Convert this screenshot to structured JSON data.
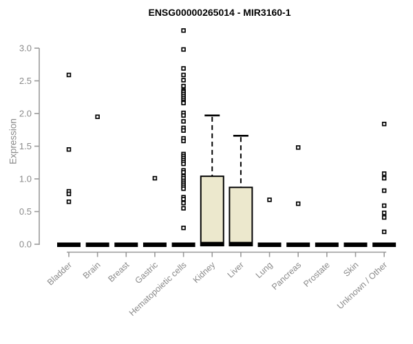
{
  "chart_data": {
    "type": "boxplot",
    "title": "ENSG00000265014 - MIR3160-1",
    "ylabel": "Expression",
    "xlabel": "",
    "ylim": [
      0,
      3.3
    ],
    "yticks": [
      0,
      0.5,
      1,
      1.5,
      2,
      2.5,
      3
    ],
    "grid": false,
    "legend": "none",
    "colors": {
      "box_fill": "#ece8cd",
      "box_stroke": "#000000",
      "point": "#000000",
      "axis": "#9a9a9a",
      "tick_label": "#8a8a8a",
      "title": "#000000"
    },
    "categories": [
      "Bladder",
      "Brain",
      "Breast",
      "Gastric",
      "Hematopoietic cells",
      "Kidney",
      "Liver",
      "Lung",
      "Pancreas",
      "Prostate",
      "Skin",
      "Unknown / Other"
    ],
    "series": [
      {
        "name": "Bladder",
        "box": {
          "q1": 0,
          "median": 0,
          "q3": 0.02,
          "upper_whisker": 0.02
        },
        "outliers": [
          2.59,
          1.45,
          0.81,
          0.77,
          0.65
        ]
      },
      {
        "name": "Brain",
        "box": {
          "q1": 0,
          "median": 0,
          "q3": 0.02,
          "upper_whisker": 0.02
        },
        "outliers": [
          1.95
        ]
      },
      {
        "name": "Breast",
        "box": {
          "q1": 0,
          "median": 0,
          "q3": 0.02,
          "upper_whisker": 0.02
        },
        "outliers": []
      },
      {
        "name": "Gastric",
        "box": {
          "q1": 0,
          "median": 0,
          "q3": 0.02,
          "upper_whisker": 0.02
        },
        "outliers": [
          1.01
        ]
      },
      {
        "name": "Hematopoietic cells",
        "box": {
          "q1": 0,
          "median": 0,
          "q3": 0.02,
          "upper_whisker": 0.02
        },
        "outliers": [
          3.27,
          2.98,
          2.69,
          2.59,
          2.51,
          2.42,
          2.35,
          2.33,
          2.3,
          2.27,
          2.24,
          2.21,
          2.18,
          2.16,
          2.01,
          1.97,
          1.88,
          1.78,
          1.74,
          1.62,
          1.58,
          1.38,
          1.35,
          1.32,
          1.29,
          1.26,
          1.23,
          1.13,
          1.1,
          1.04,
          1.01,
          0.97,
          0.94,
          0.91,
          0.88,
          0.85,
          0.72,
          0.69,
          0.63,
          0.55,
          0.25
        ]
      },
      {
        "name": "Kidney",
        "box": {
          "q1": 0.01,
          "median": 0.01,
          "q3": 1.04,
          "upper_whisker": 1.97
        },
        "outliers": []
      },
      {
        "name": "Liver",
        "box": {
          "q1": 0.01,
          "median": 0.01,
          "q3": 0.87,
          "upper_whisker": 1.66
        },
        "outliers": []
      },
      {
        "name": "Lung",
        "box": {
          "q1": 0,
          "median": 0,
          "q3": 0.02,
          "upper_whisker": 0.02
        },
        "outliers": [
          0.68
        ]
      },
      {
        "name": "Pancreas",
        "box": {
          "q1": 0,
          "median": 0,
          "q3": 0.02,
          "upper_whisker": 0.02
        },
        "outliers": [
          1.48,
          0.62
        ]
      },
      {
        "name": "Prostate",
        "box": {
          "q1": 0,
          "median": 0,
          "q3": 0.02,
          "upper_whisker": 0.02
        },
        "outliers": []
      },
      {
        "name": "Skin",
        "box": {
          "q1": 0,
          "median": 0,
          "q3": 0.02,
          "upper_whisker": 0.02
        },
        "outliers": []
      },
      {
        "name": "Unknown / Other",
        "box": {
          "q1": 0,
          "median": 0,
          "q3": 0.02,
          "upper_whisker": 0.02
        },
        "outliers": [
          1.84,
          1.08,
          1.01,
          0.82,
          0.59,
          0.48,
          0.41,
          0.19
        ]
      }
    ]
  }
}
